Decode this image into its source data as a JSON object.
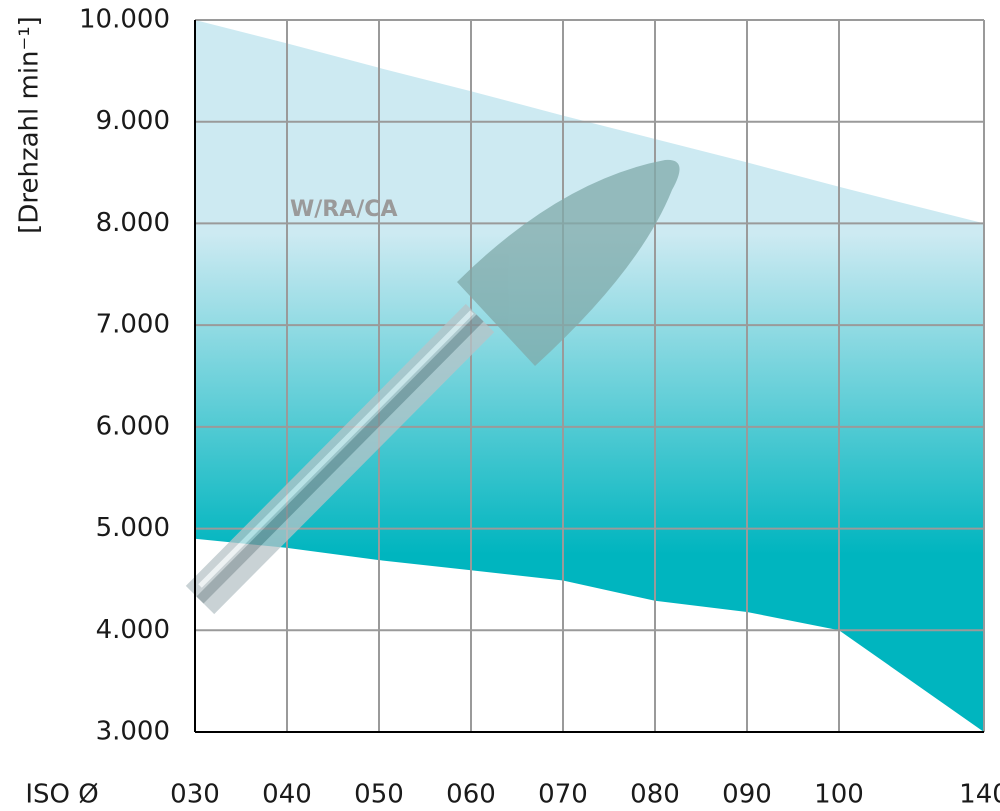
{
  "chart_data": {
    "type": "area_band",
    "y_label": "[Drehzahl min⁻¹]",
    "x_label": "ISO Ø",
    "annotation": "W/RA/CA",
    "categories": [
      "030",
      "040",
      "050",
      "060",
      "070",
      "080",
      "090",
      "100",
      "140"
    ],
    "series": [
      {
        "values": [
          10000,
          9770,
          9530,
          9300,
          9060,
          8830,
          8600,
          8360,
          8000
        ]
      },
      {
        "values": [
          4900,
          4810,
          4690,
          4590,
          4490,
          4290,
          4180,
          4000,
          3000
        ]
      }
    ],
    "color_top": "#cdeaf2",
    "color_bottom": "#00b5bf",
    "ylim": [
      3000,
      10000
    ],
    "yticks": [
      {
        "value": 3000,
        "label": "3.000"
      },
      {
        "value": 4000,
        "label": "4.000"
      },
      {
        "value": 5000,
        "label": "5.000"
      },
      {
        "value": 6000,
        "label": "6.000"
      },
      {
        "value": 7000,
        "label": "7.000"
      },
      {
        "value": 8000,
        "label": "8.000"
      },
      {
        "value": 9000,
        "label": "9.000"
      },
      {
        "value": 10000,
        "label": "10.000"
      }
    ],
    "grid": true
  }
}
